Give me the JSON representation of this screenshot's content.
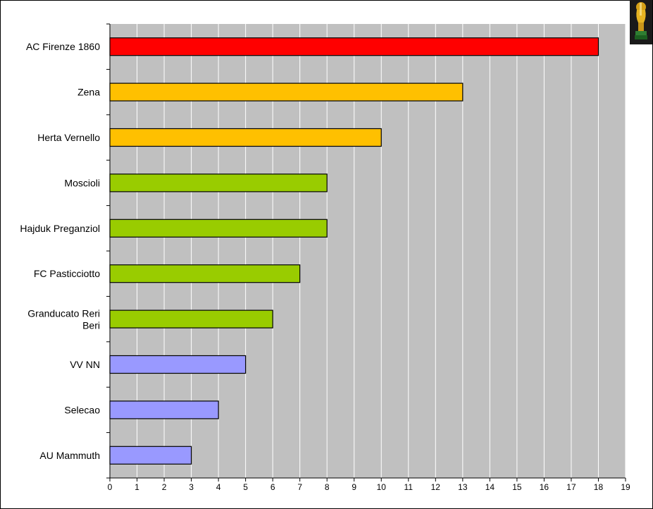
{
  "chart_data": {
    "type": "bar",
    "orientation": "horizontal",
    "title": "",
    "xlabel": "",
    "ylabel": "",
    "categories": [
      "AC Firenze 1860",
      "Zena",
      "Herta Vernello",
      "Moscioli",
      "Hajduk Preganziol",
      "FC Pasticciotto",
      "Granducato Reri Beri",
      "VV NN",
      "Selecao",
      "AU Mammuth"
    ],
    "values": [
      18,
      13,
      10,
      8,
      8,
      7,
      6,
      5,
      4,
      3
    ],
    "bar_colors": [
      "#ff0000",
      "#ffc000",
      "#ffc000",
      "#99cc00",
      "#99cc00",
      "#99cc00",
      "#99cc00",
      "#9999ff",
      "#9999ff",
      "#9999ff"
    ],
    "xlim": [
      0,
      19
    ],
    "xticks": [
      0,
      1,
      2,
      3,
      4,
      5,
      6,
      7,
      8,
      9,
      10,
      11,
      12,
      13,
      14,
      15,
      16,
      17,
      18,
      19
    ],
    "grid": true,
    "plot_background": "#c0c0c0",
    "gridline_color": "#ffffff",
    "legend": "none"
  },
  "decoration": {
    "icon": "trophy-icon"
  }
}
